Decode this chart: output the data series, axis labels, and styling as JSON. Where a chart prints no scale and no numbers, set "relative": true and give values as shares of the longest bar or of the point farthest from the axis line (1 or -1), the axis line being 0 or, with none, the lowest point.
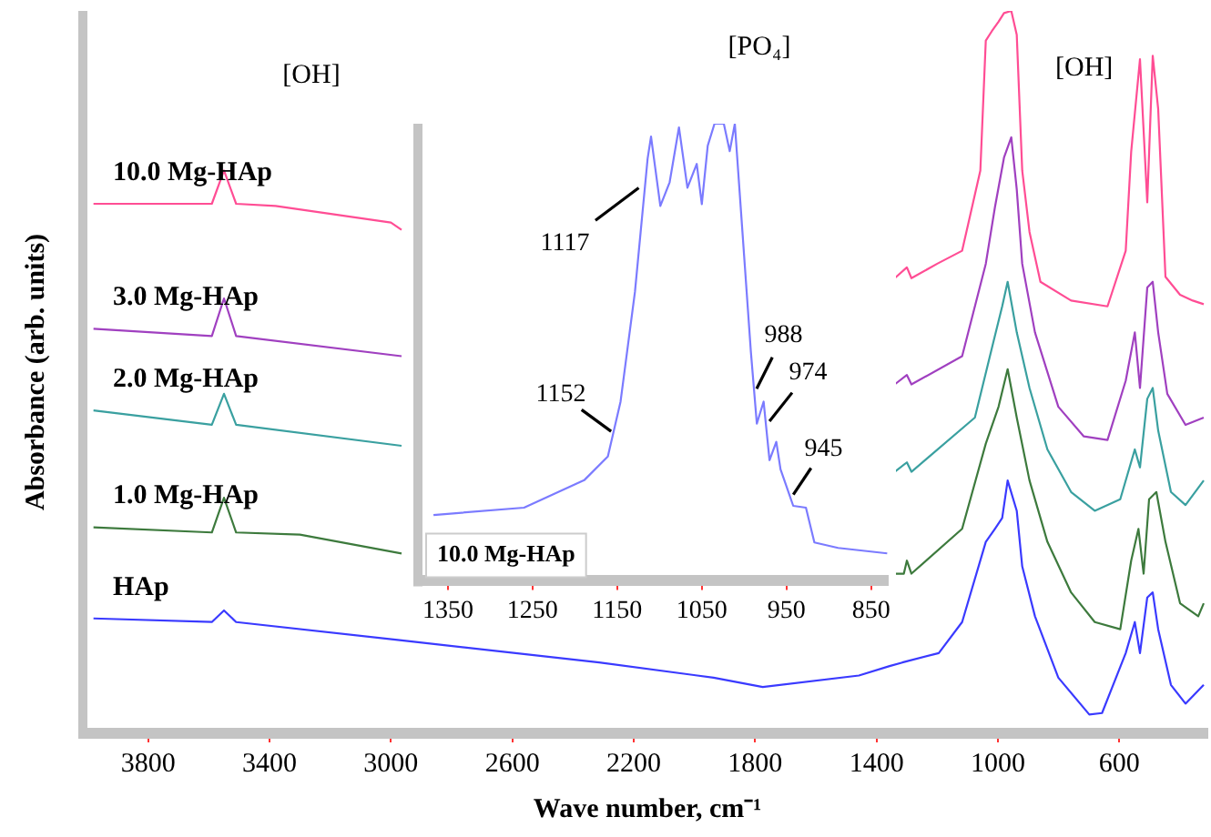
{
  "chart_data": [
    {
      "type": "line",
      "xlabel": "Wave number, cm⁻¹",
      "ylabel": "Absorbance (arb. units)",
      "relative": true,
      "xlim": [
        4000,
        310
      ],
      "xticks": [
        3800,
        3400,
        3000,
        2600,
        2200,
        1800,
        1400,
        1000,
        600
      ],
      "annotations": [
        "[OH]",
        "[PO₄]",
        "[OH]"
      ],
      "series": [
        {
          "name": "10.0 Mg-HAp",
          "color": "#ff4d94",
          "x": [
            3980,
            3590,
            3550,
            3510,
            3380,
            3000,
            2965,
            2100,
            1340,
            1300,
            1285,
            1200,
            1118,
            1058,
            1040,
            1020,
            998,
            980,
            956,
            938,
            920,
            896,
            860,
            759,
            639,
            579,
            561,
            532,
            508,
            490,
            472,
            448,
            400,
            358,
            322
          ],
          "values": [
            0.733,
            0.733,
            0.779,
            0.733,
            0.73,
            0.707,
            0.697,
            null,
            0.63,
            0.645,
            0.63,
            0.65,
            0.668,
            0.779,
            0.959,
            0.972,
            0.985,
            0.997,
            1,
            0.967,
            0.779,
            0.694,
            0.625,
            0.599,
            0.591,
            0.668,
            0.805,
            0.933,
            0.735,
            0.938,
            0.864,
            0.632,
            0.607,
            0.599,
            0.594
          ]
        },
        {
          "name": "3.0 Mg-HAp",
          "color": "#a040c0",
          "x": [
            3980,
            3590,
            3550,
            3510,
            2965,
            2100,
            1340,
            1300,
            1285,
            1118,
            1040,
            1010,
            980,
            956,
            938,
            920,
            878,
            801,
            717,
            639,
            579,
            549,
            532,
            508,
            490,
            472,
            442,
            382,
            322
          ],
          "values": [
            0.56,
            0.55,
            0.602,
            0.55,
            0.522,
            null,
            0.483,
            0.496,
            0.483,
            0.522,
            0.65,
            0.728,
            0.797,
            0.825,
            0.753,
            0.65,
            0.555,
            0.452,
            0.411,
            0.406,
            0.488,
            0.555,
            0.478,
            0.617,
            0.625,
            0.555,
            0.47,
            0.427,
            0.437
          ]
        },
        {
          "name": "2.0 Mg-HAp",
          "color": "#3aa0a0",
          "x": [
            3980,
            3590,
            3550,
            3510,
            2965,
            2100,
            1340,
            1300,
            1285,
            1076,
            1016,
            986,
            968,
            938,
            896,
            837,
            759,
            681,
            597,
            549,
            532,
            508,
            490,
            472,
            430,
            382,
            322
          ],
          "values": [
            0.447,
            0.427,
            0.47,
            0.427,
            0.398,
            null,
            0.362,
            0.375,
            0.362,
            0.437,
            0.54,
            0.591,
            0.625,
            0.555,
            0.478,
            0.393,
            0.334,
            0.308,
            0.324,
            0.393,
            0.368,
            0.463,
            0.478,
            0.419,
            0.334,
            0.316,
            0.35
          ]
        },
        {
          "name": "1.0 Mg-HAp",
          "color": "#3d7a3d",
          "x": [
            3980,
            3590,
            3550,
            3510,
            3300,
            2965,
            2100,
            1340,
            1310,
            1300,
            1285,
            1118,
            1040,
            998,
            968,
            938,
            896,
            837,
            759,
            681,
            597,
            561,
            537,
            520,
            502,
            478,
            448,
            400,
            340,
            322
          ],
          "values": [
            0.285,
            0.278,
            0.326,
            0.278,
            0.275,
            0.249,
            null,
            0.221,
            0.221,
            0.239,
            0.221,
            0.283,
            0.401,
            0.452,
            0.504,
            0.437,
            0.35,
            0.265,
            0.195,
            0.154,
            0.144,
            0.239,
            0.283,
            0.221,
            0.324,
            0.334,
            0.265,
            0.18,
            0.162,
            0.18
          ]
        },
        {
          "name": "HAp",
          "color": "#3a3aff",
          "x": [
            3980,
            3590,
            3550,
            3510,
            2971,
            2314,
            1937,
            1775,
            1458,
            1357,
            1315,
            1195,
            1118,
            1040,
            1010,
            986,
            968,
            938,
            920,
            878,
            801,
            699,
            657,
            579,
            549,
            532,
            508,
            490,
            472,
            430,
            382,
            322
          ],
          "values": [
            0.159,
            0.154,
            0.17,
            0.154,
            0.129,
            0.098,
            0.077,
            0.064,
            0.08,
            0.093,
            0.098,
            0.111,
            0.154,
            0.265,
            0.283,
            0.298,
            0.35,
            0.308,
            0.231,
            0.162,
            0.077,
            0.026,
            0.028,
            0.111,
            0.154,
            0.111,
            0.188,
            0.195,
            0.144,
            0.067,
            0.041,
            0.067
          ]
        }
      ]
    },
    {
      "type": "line",
      "relative": true,
      "xlim": [
        1380,
        830
      ],
      "xticks": [
        1350,
        1250,
        1150,
        1050,
        950,
        850
      ],
      "annotations": [
        {
          "text": "1117",
          "x": 1117,
          "y": 0.87
        },
        {
          "text": "1152",
          "x": 1152,
          "y": 0.32
        },
        {
          "text": "988",
          "x": 988,
          "y": 0.41
        },
        {
          "text": "974",
          "x": 974,
          "y": 0.34
        },
        {
          "text": "945",
          "x": 945,
          "y": 0.18
        }
      ],
      "series": [
        {
          "name": "10.0 Mg-HAp",
          "color": "#7b7bff",
          "x": [
            1367,
            1260,
            1189,
            1161,
            1146,
            1129,
            1114,
            1110,
            1099,
            1088,
            1077,
            1067,
            1056,
            1050,
            1043,
            1035,
            1024,
            1017,
            1011,
            992,
            985,
            977,
            970,
            962,
            957,
            951,
            942,
            927,
            917,
            889,
            831
          ],
          "values": [
            0.144,
            0.16,
            0.22,
            0.272,
            0.392,
            0.632,
            0.924,
            0.972,
            0.82,
            0.872,
            0.992,
            0.86,
            0.912,
            0.824,
            0.952,
            1,
            1,
            0.94,
            1,
            0.5,
            0.344,
            0.392,
            0.264,
            0.304,
            0.244,
            0.212,
            0.164,
            0.16,
            0.084,
            0.072,
            0.06
          ]
        }
      ]
    }
  ]
}
